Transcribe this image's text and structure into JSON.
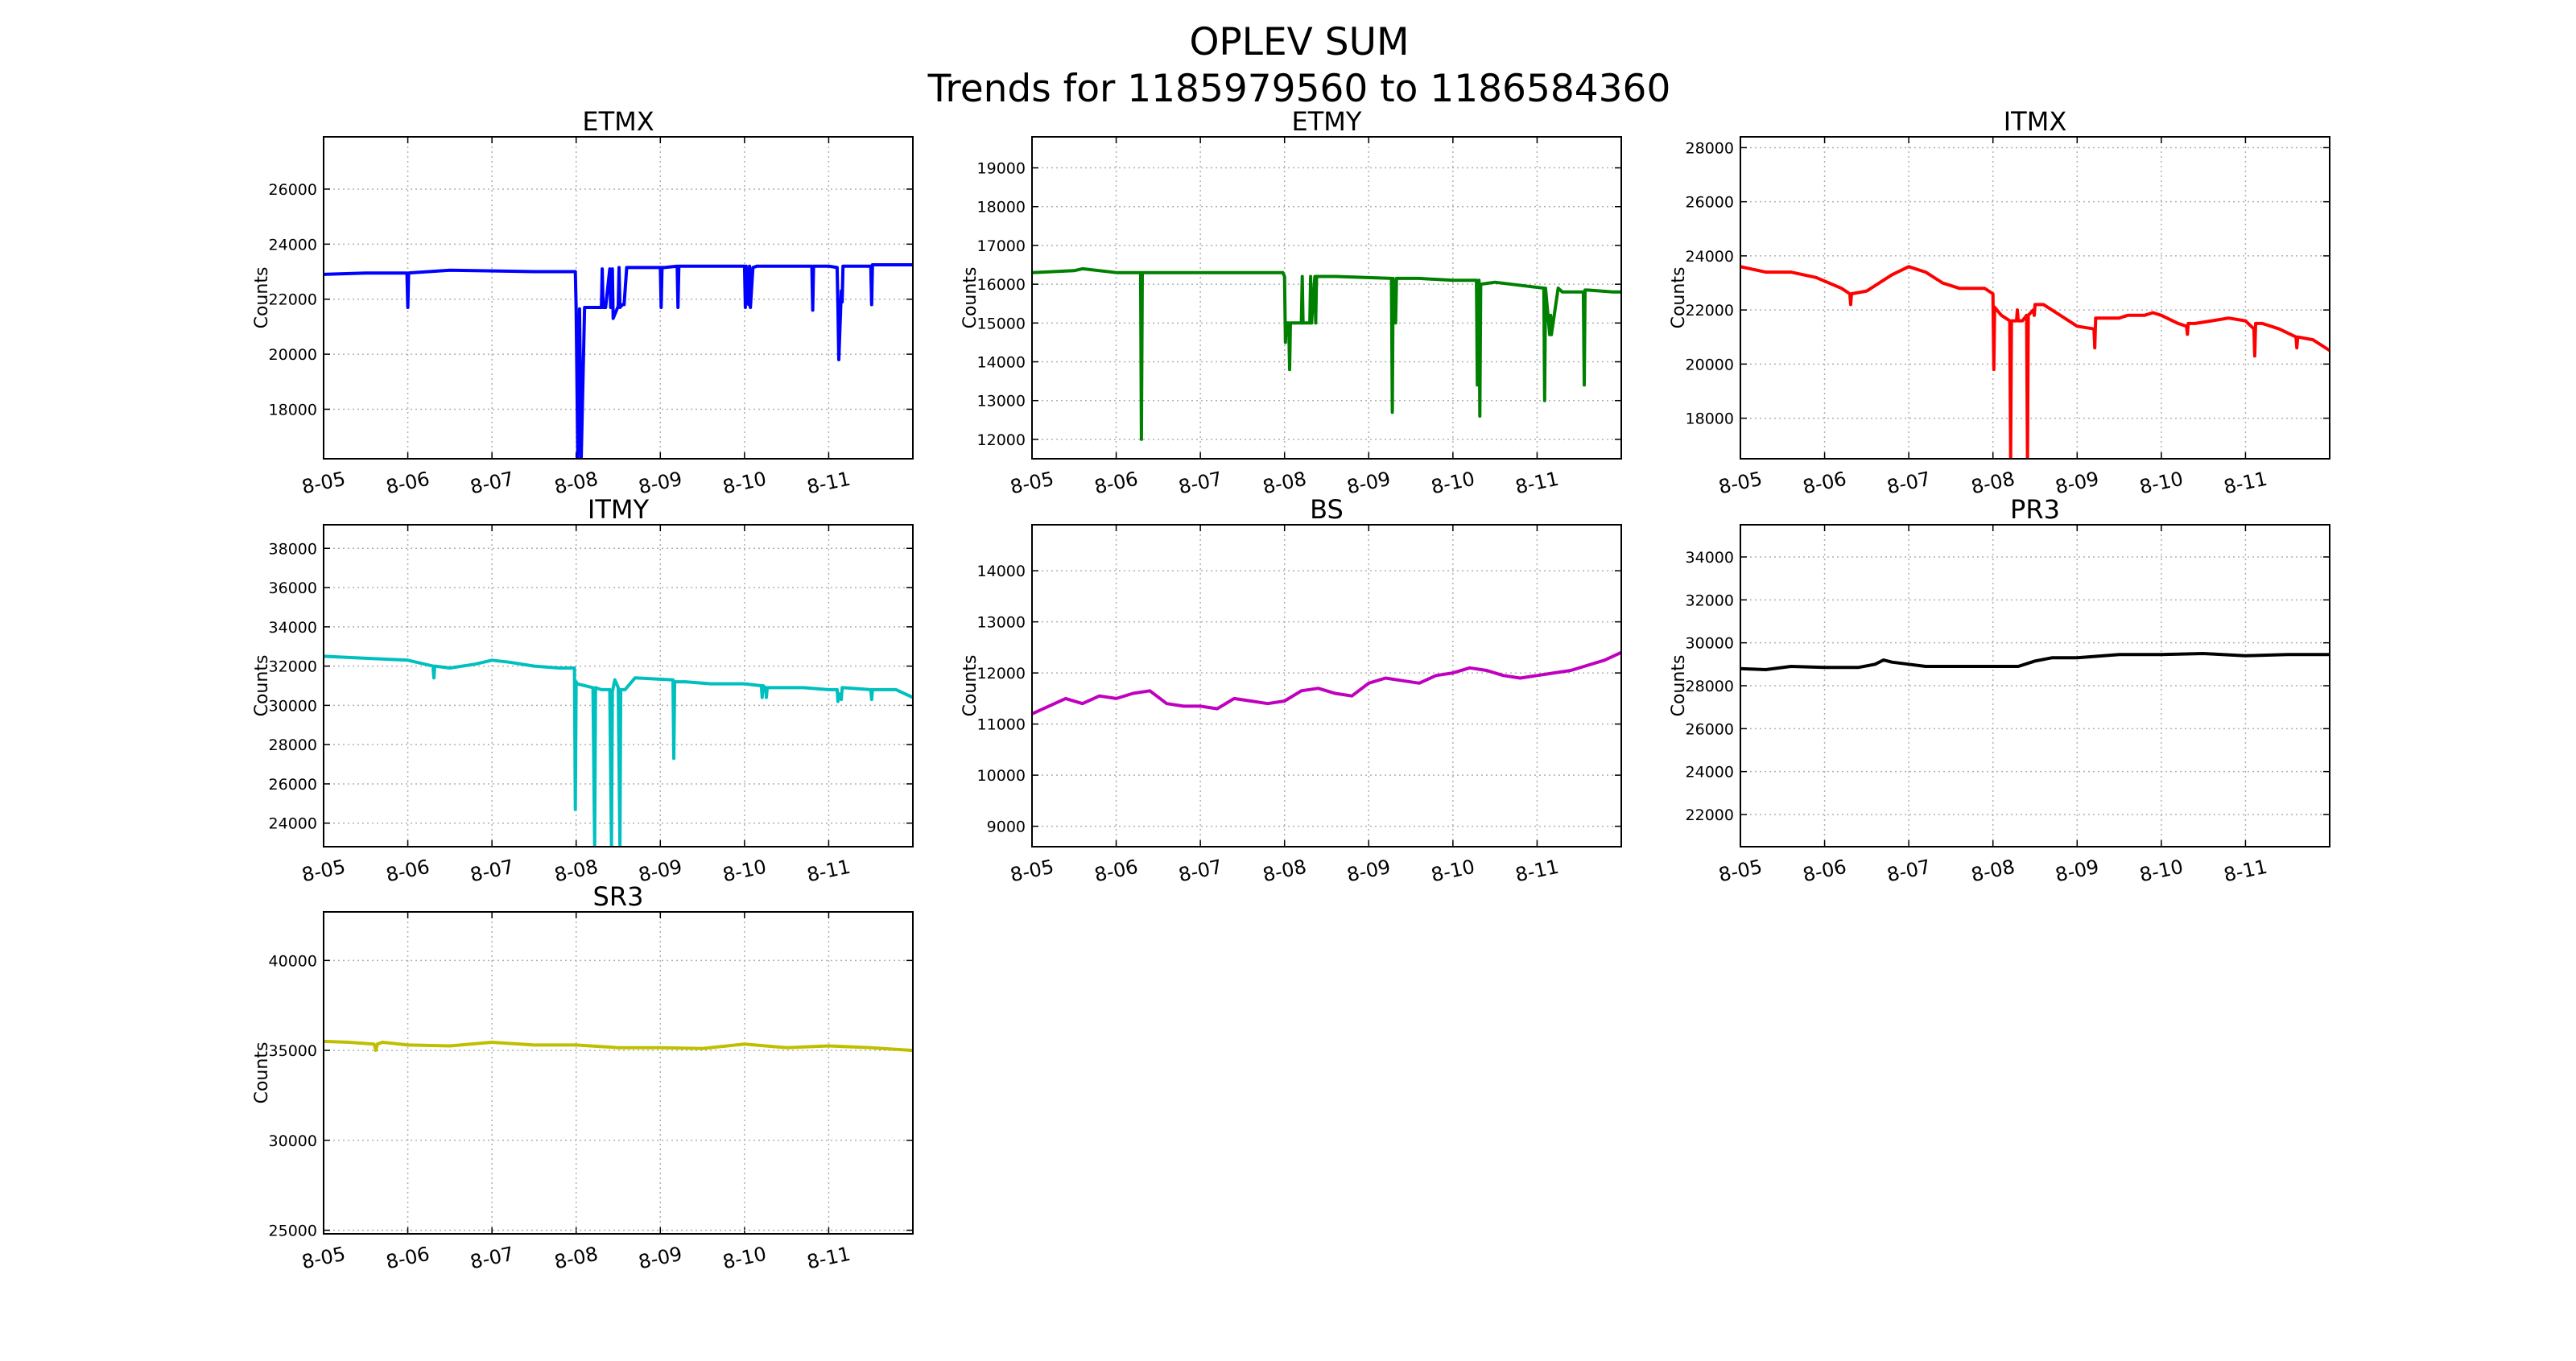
{
  "figure": {
    "title_line1": "OPLEV SUM",
    "title_line2": "Trends for 1185979560 to 1186584360"
  },
  "chart_data": [
    {
      "type": "line",
      "title": "ETMX",
      "ylabel": "Counts",
      "color": "#0000ff",
      "xlim": [
        0,
        7
      ],
      "ylim": [
        16200,
        27900
      ],
      "grid": true,
      "x_tick_labels": [
        "8-05",
        "8-06",
        "8-07",
        "8-08",
        "8-09",
        "8-10",
        "8-11"
      ],
      "y_ticks": [
        18000,
        20000,
        22000,
        24000,
        26000
      ],
      "series": [
        {
          "x": [
            0,
            0.5,
            0.99,
            1.0,
            1.01,
            1.5,
            2.5,
            2.99,
            3.0,
            3.02,
            3.04,
            3.06,
            3.1,
            3.15,
            3.3,
            3.31,
            3.32,
            3.35,
            3.4,
            3.41,
            3.43,
            3.44,
            3.5,
            3.51,
            3.52,
            3.55,
            3.57,
            3.6,
            3.61,
            4.0,
            4.01,
            4.02,
            4.05,
            4.2,
            4.21,
            4.22,
            4.3,
            5.0,
            5.01,
            5.02,
            5.05,
            5.06,
            5.07,
            5.1,
            5.15,
            5.8,
            5.81,
            5.82,
            6.0,
            6.1,
            6.11,
            6.12,
            6.15,
            6.16,
            6.17,
            6.5,
            6.51,
            6.52,
            7.0
          ],
          "y": [
            22900,
            22950,
            22950,
            21700,
            22950,
            23050,
            23000,
            23000,
            21650,
            16200,
            21650,
            16200,
            21700,
            21700,
            21700,
            23100,
            21700,
            21700,
            23100,
            21700,
            23100,
            21300,
            21750,
            23150,
            21700,
            21800,
            21800,
            23150,
            23150,
            23150,
            21700,
            23150,
            23150,
            23200,
            21700,
            23200,
            23200,
            23200,
            21700,
            23200,
            21800,
            23200,
            21700,
            23150,
            23200,
            23200,
            21600,
            23200,
            23200,
            23150,
            21700,
            19800,
            22300,
            21900,
            23200,
            23200,
            21800,
            23250,
            23250
          ]
        }
      ]
    },
    {
      "type": "line",
      "title": "ETMY",
      "ylabel": "Counts",
      "color": "#008000",
      "xlim": [
        0,
        7
      ],
      "ylim": [
        11500,
        19800
      ],
      "grid": true,
      "x_tick_labels": [
        "8-05",
        "8-06",
        "8-07",
        "8-08",
        "8-09",
        "8-10",
        "8-11"
      ],
      "y_ticks": [
        12000,
        13000,
        14000,
        15000,
        16000,
        17000,
        18000,
        19000
      ],
      "series": [
        {
          "x": [
            0,
            0.5,
            0.6,
            1.0,
            1.29,
            1.3,
            1.31,
            2.5,
            2.98,
            3.0,
            3.01,
            3.02,
            3.05,
            3.06,
            3.07,
            3.1,
            3.2,
            3.21,
            3.22,
            3.3,
            3.31,
            3.32,
            3.36,
            3.37,
            3.38,
            3.6,
            3.61,
            4.27,
            4.28,
            4.29,
            4.32,
            4.33,
            4.34,
            4.6,
            5.0,
            5.2,
            5.28,
            5.29,
            5.31,
            5.32,
            5.33,
            5.5,
            6.08,
            6.09,
            6.1,
            6.15,
            6.16,
            6.17,
            6.25,
            6.3,
            6.55,
            6.56,
            6.57,
            6.6,
            6.9,
            7.0
          ],
          "y": [
            16300,
            16350,
            16400,
            16300,
            16300,
            12000,
            16300,
            16300,
            16300,
            16200,
            14500,
            15000,
            15000,
            13800,
            15000,
            15000,
            15000,
            16200,
            15000,
            15000,
            16200,
            15000,
            16200,
            15000,
            16200,
            16200,
            16200,
            16150,
            12700,
            16150,
            15000,
            16150,
            16150,
            16150,
            16100,
            16100,
            16100,
            13400,
            16100,
            12600,
            16000,
            16050,
            15900,
            13000,
            15900,
            14700,
            15200,
            14700,
            15900,
            15800,
            15800,
            13400,
            15850,
            15850,
            15800,
            15800
          ]
        }
      ]
    },
    {
      "type": "line",
      "title": "ITMX",
      "ylabel": "Counts",
      "color": "#ff0000",
      "xlim": [
        0,
        7
      ],
      "ylim": [
        16500,
        28400
      ],
      "grid": true,
      "x_tick_labels": [
        "8-05",
        "8-06",
        "8-07",
        "8-08",
        "8-09",
        "8-10",
        "8-11"
      ],
      "y_ticks": [
        18000,
        20000,
        22000,
        24000,
        26000,
        28000
      ],
      "series": [
        {
          "x": [
            0,
            0.3,
            0.6,
            0.9,
            1.2,
            1.3,
            1.31,
            1.32,
            1.5,
            1.8,
            2.0,
            2.2,
            2.4,
            2.6,
            2.9,
            3.0,
            3.01,
            3.02,
            3.1,
            3.2,
            3.21,
            3.22,
            3.28,
            3.29,
            3.3,
            3.35,
            3.4,
            3.41,
            3.42,
            3.48,
            3.49,
            3.5,
            3.6,
            3.8,
            4.0,
            4.2,
            4.21,
            4.22,
            4.3,
            4.5,
            4.6,
            4.8,
            4.9,
            5.0,
            5.2,
            5.3,
            5.31,
            5.32,
            5.4,
            5.6,
            5.8,
            6.0,
            6.1,
            6.11,
            6.12,
            6.2,
            6.4,
            6.6,
            6.61,
            6.62,
            6.8,
            7.0
          ],
          "y": [
            23600,
            23400,
            23400,
            23200,
            22800,
            22600,
            22200,
            22600,
            22700,
            23300,
            23600,
            23400,
            23000,
            22800,
            22800,
            22600,
            19800,
            22100,
            21800,
            21600,
            16500,
            21600,
            21600,
            22000,
            21600,
            21600,
            21800,
            16500,
            21800,
            22000,
            21800,
            22200,
            22200,
            21800,
            21400,
            21300,
            20600,
            21700,
            21700,
            21700,
            21800,
            21800,
            21900,
            21800,
            21500,
            21400,
            21100,
            21500,
            21500,
            21600,
            21700,
            21600,
            21300,
            20300,
            21500,
            21500,
            21300,
            21000,
            20600,
            21000,
            20900,
            20500
          ]
        }
      ]
    },
    {
      "type": "line",
      "title": "ITMY",
      "ylabel": "Counts",
      "color": "#00bfbf",
      "xlim": [
        0,
        7
      ],
      "ylim": [
        22800,
        39200
      ],
      "grid": true,
      "x_tick_labels": [
        "8-05",
        "8-06",
        "8-07",
        "8-08",
        "8-09",
        "8-10",
        "8-11"
      ],
      "y_ticks": [
        24000,
        26000,
        28000,
        30000,
        32000,
        34000,
        36000,
        38000
      ],
      "series": [
        {
          "x": [
            0,
            0.5,
            1.0,
            1.3,
            1.31,
            1.32,
            1.5,
            1.8,
            2.0,
            2.2,
            2.5,
            2.8,
            2.98,
            2.99,
            3.0,
            3.01,
            3.2,
            3.22,
            3.23,
            3.3,
            3.4,
            3.42,
            3.43,
            3.46,
            3.5,
            3.52,
            3.53,
            3.58,
            3.7,
            4.15,
            4.16,
            4.17,
            4.3,
            4.6,
            5.0,
            5.2,
            5.21,
            5.22,
            5.25,
            5.26,
            5.27,
            5.5,
            5.7,
            6.0,
            6.1,
            6.11,
            6.12,
            6.15,
            6.16,
            6.17,
            6.5,
            6.51,
            6.52,
            6.8,
            7.0
          ],
          "y": [
            32500,
            32400,
            32300,
            32000,
            31400,
            32000,
            31900,
            32100,
            32300,
            32200,
            32000,
            31900,
            31900,
            24700,
            31200,
            31100,
            30900,
            22800,
            30900,
            30800,
            30800,
            22800,
            30700,
            31300,
            30900,
            22800,
            30800,
            30800,
            31400,
            31300,
            27300,
            31200,
            31200,
            31100,
            31100,
            31000,
            30400,
            31000,
            30900,
            30400,
            30900,
            30900,
            30900,
            30800,
            30800,
            30200,
            30600,
            30300,
            30900,
            30900,
            30800,
            30300,
            30800,
            30800,
            30400
          ]
        }
      ]
    },
    {
      "type": "line",
      "title": "BS",
      "ylabel": "Counts",
      "color": "#bf00bf",
      "xlim": [
        0,
        7
      ],
      "ylim": [
        8600,
        14900
      ],
      "grid": true,
      "x_tick_labels": [
        "8-05",
        "8-06",
        "8-07",
        "8-08",
        "8-09",
        "8-10",
        "8-11"
      ],
      "y_ticks": [
        9000,
        10000,
        11000,
        12000,
        13000,
        14000
      ],
      "series": [
        {
          "x": [
            0,
            0.2,
            0.4,
            0.6,
            0.8,
            1.0,
            1.2,
            1.4,
            1.6,
            1.8,
            2.0,
            2.2,
            2.4,
            2.6,
            2.8,
            3.0,
            3.2,
            3.4,
            3.6,
            3.8,
            4.0,
            4.2,
            4.4,
            4.6,
            4.8,
            5.0,
            5.2,
            5.4,
            5.6,
            5.8,
            6.0,
            6.2,
            6.4,
            6.6,
            6.8,
            7.0
          ],
          "y": [
            11200,
            11350,
            11500,
            11400,
            11550,
            11500,
            11600,
            11650,
            11400,
            11350,
            11350,
            11300,
            11500,
            11450,
            11400,
            11450,
            11650,
            11700,
            11600,
            11550,
            11800,
            11900,
            11850,
            11800,
            11950,
            12000,
            12100,
            12050,
            11950,
            11900,
            11950,
            12000,
            12050,
            12150,
            12250,
            12400
          ]
        }
      ]
    },
    {
      "type": "line",
      "title": "PR3",
      "ylabel": "Counts",
      "color": "#000000",
      "xlim": [
        0,
        7
      ],
      "ylim": [
        20500,
        35500
      ],
      "grid": true,
      "x_tick_labels": [
        "8-05",
        "8-06",
        "8-07",
        "8-08",
        "8-09",
        "8-10",
        "8-11"
      ],
      "y_ticks": [
        22000,
        24000,
        26000,
        28000,
        30000,
        32000,
        34000
      ],
      "series": [
        {
          "x": [
            0,
            0.3,
            0.6,
            1.0,
            1.4,
            1.6,
            1.7,
            1.8,
            2.0,
            2.2,
            2.5,
            3.0,
            3.3,
            3.5,
            3.7,
            4.0,
            4.5,
            5.0,
            5.5,
            6.0,
            6.5,
            7.0
          ],
          "y": [
            28800,
            28750,
            28900,
            28850,
            28850,
            29000,
            29200,
            29100,
            29000,
            28900,
            28900,
            28900,
            28900,
            29150,
            29300,
            29300,
            29450,
            29450,
            29500,
            29400,
            29450,
            29450
          ]
        }
      ]
    },
    {
      "type": "line",
      "title": "SR3",
      "ylabel": "Counts",
      "color": "#bfbf00",
      "xlim": [
        0,
        7
      ],
      "ylim": [
        24800,
        42700
      ],
      "grid": true,
      "x_tick_labels": [
        "8-05",
        "8-06",
        "8-07",
        "8-08",
        "8-09",
        "8-10",
        "8-11"
      ],
      "y_ticks": [
        25000,
        30000,
        35000,
        40000
      ],
      "series": [
        {
          "x": [
            0,
            0.3,
            0.6,
            0.62,
            0.64,
            0.7,
            1.0,
            1.5,
            2.0,
            2.5,
            3.0,
            3.5,
            4.0,
            4.5,
            5.0,
            5.5,
            6.0,
            6.5,
            7.0
          ],
          "y": [
            35500,
            35450,
            35350,
            35000,
            35350,
            35450,
            35300,
            35250,
            35450,
            35300,
            35300,
            35150,
            35150,
            35100,
            35350,
            35150,
            35250,
            35150,
            35000
          ]
        }
      ]
    }
  ]
}
